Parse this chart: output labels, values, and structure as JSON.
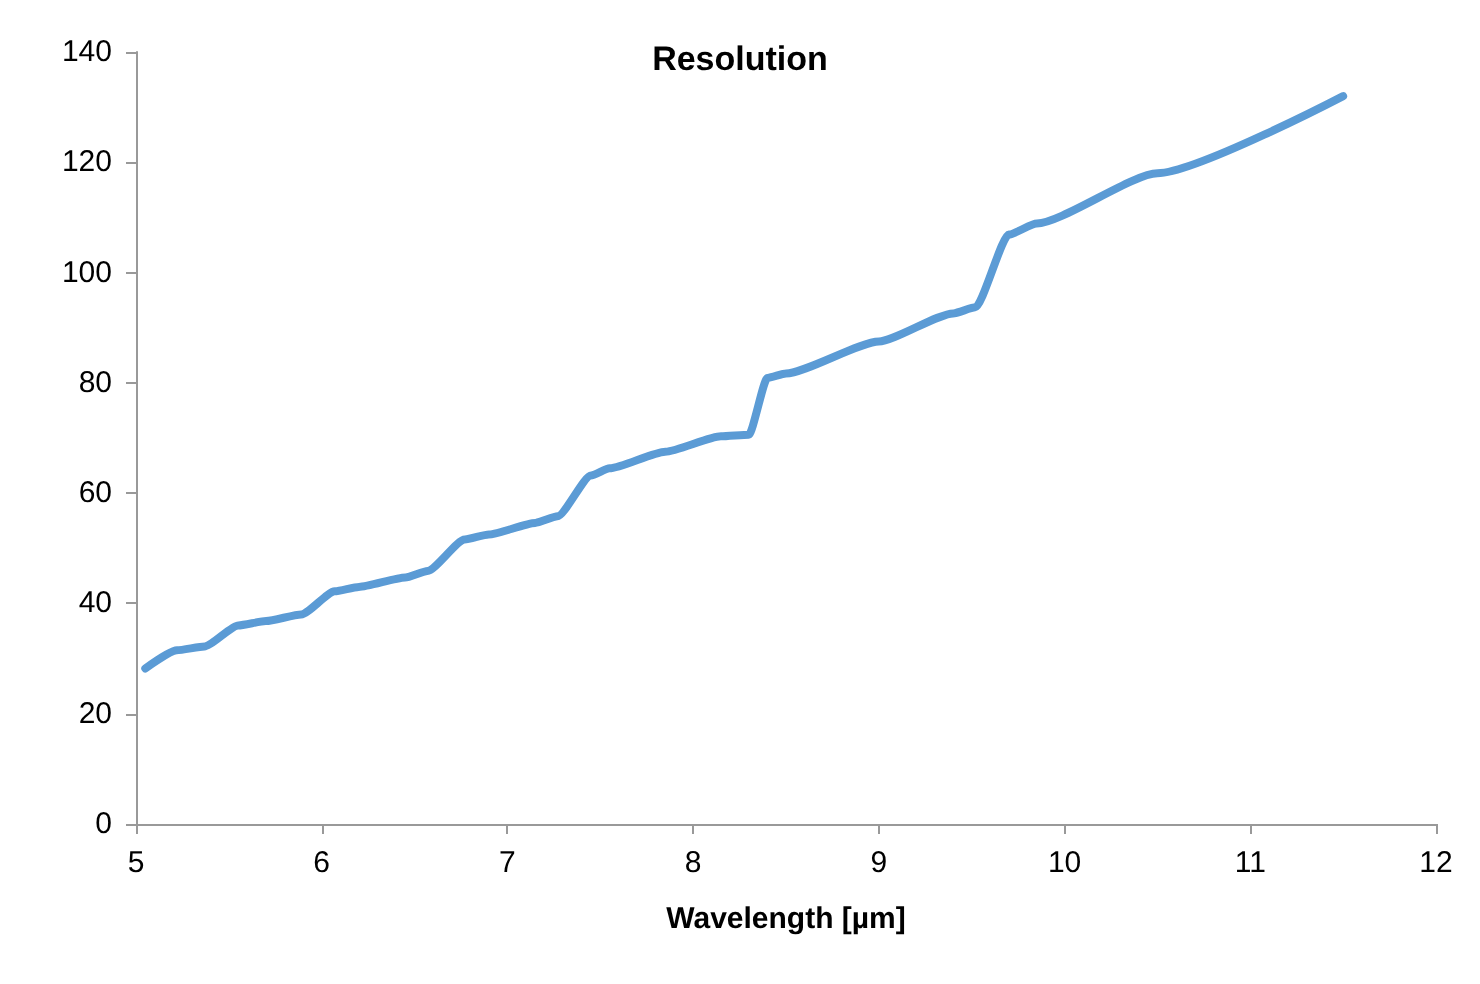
{
  "chart_data": {
    "type": "line",
    "title": "Resolution",
    "xlabel": "Wavelength [µm]",
    "series": [
      {
        "color": "#5b9bd5",
        "x": [
          5.05,
          5.22,
          5.37,
          5.55,
          5.7,
          5.89,
          6.07,
          6.2,
          6.45,
          6.57,
          6.77,
          6.9,
          7.15,
          7.27,
          7.45,
          7.55,
          7.85,
          8.15,
          8.3,
          8.4,
          8.5,
          9.0,
          9.4,
          9.52,
          9.7,
          9.85,
          10.5,
          11.5
        ],
        "values": [
          28.2,
          31.5,
          32.2,
          36,
          36.8,
          38,
          42.2,
          43,
          44.7,
          45.9,
          51.6,
          52.5,
          54.6,
          55.8,
          63.2,
          64.5,
          67.5,
          70.3,
          70.6,
          80.9,
          81.7,
          87.5,
          92.6,
          93.7,
          106.9,
          108.9,
          118,
          132
        ]
      }
    ],
    "xlim": [
      5,
      12
    ],
    "xticks": [
      5,
      6,
      7,
      8,
      9,
      10,
      11,
      12
    ],
    "ylim": [
      0,
      140
    ],
    "yticks": [
      0,
      20,
      40,
      60,
      80,
      100,
      120,
      140
    ],
    "grid": false,
    "marker": "none",
    "line_style": "solid"
  }
}
